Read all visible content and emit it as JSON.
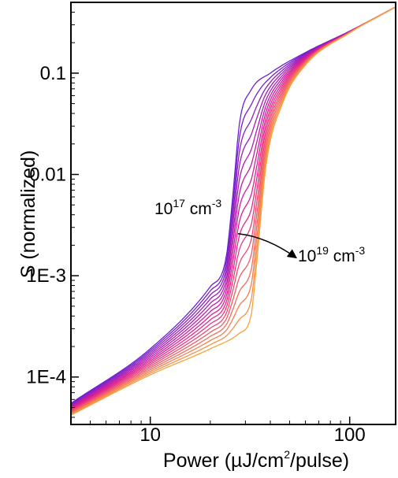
{
  "chart_data": {
    "type": "line",
    "title": "",
    "xlabel": {
      "pre": "Power (µJ/cm",
      "sup": "2",
      "post": "/pulse)"
    },
    "ylabel": "S (normalized)",
    "xscale": "log",
    "yscale": "log",
    "xlim": [
      4,
      170
    ],
    "ylim": [
      3.4e-05,
      0.5
    ],
    "grid": false,
    "legend": "none",
    "x_ticks": [
      {
        "value": 10,
        "label": "10"
      },
      {
        "value": 100,
        "label": "100"
      }
    ],
    "y_ticks": [
      {
        "value": 0.0001,
        "label": "1E-4"
      },
      {
        "value": 0.001,
        "label": "1E-3"
      },
      {
        "value": 0.01,
        "label": "0.01"
      },
      {
        "value": 0.1,
        "label": "0.1"
      }
    ],
    "annotations": {
      "start": {
        "base": "10",
        "exp": "17",
        "unit": " cm",
        "unit_exp": "-3"
      },
      "end": {
        "base": "10",
        "exp": "19",
        "unit": " cm",
        "unit_exp": "-3"
      },
      "arrow": {
        "from": [
          27.5,
          0.0026
        ],
        "to": [
          54,
          0.0015
        ]
      }
    },
    "color_range": [
      "#6a1fd6",
      "#f7a23a"
    ],
    "series_count": 16,
    "series_first": {
      "x": [
        4,
        10,
        20,
        24,
        26,
        28,
        32,
        40,
        60,
        100,
        170
      ],
      "y": [
        5.5e-05,
        0.00019,
        0.00078,
        0.0015,
        0.0065,
        0.032,
        0.068,
        0.1,
        0.16,
        0.26,
        0.45
      ]
    },
    "series_last": {
      "x": [
        4,
        10,
        20,
        28,
        32,
        34,
        38,
        46,
        60,
        100,
        170
      ],
      "y": [
        4.2e-05,
        0.000105,
        0.00019,
        0.00027,
        0.0004,
        0.0012,
        0.012,
        0.05,
        0.12,
        0.25,
        0.45
      ]
    }
  }
}
